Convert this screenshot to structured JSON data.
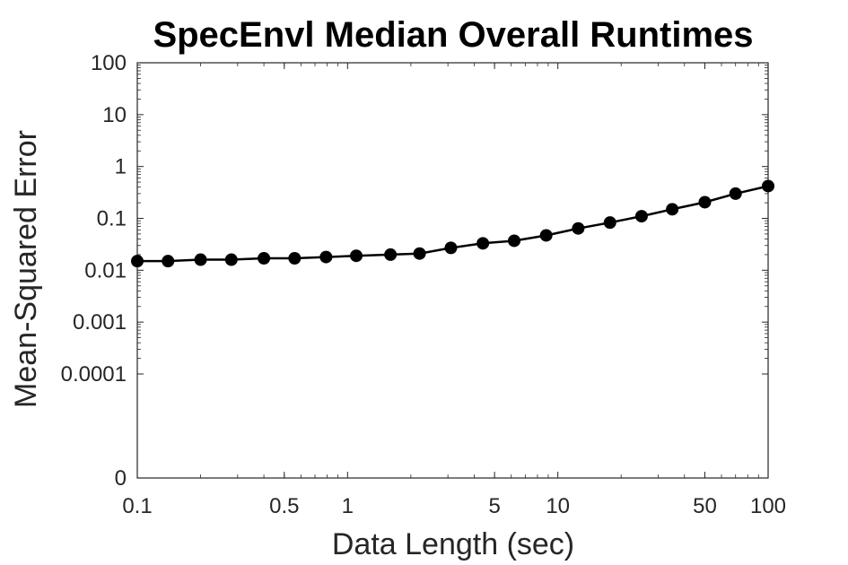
{
  "chart_data": {
    "type": "line",
    "title": "SpecEnvl Median Overall Runtimes",
    "xlabel": "Data Length (sec)",
    "ylabel": "Mean-Squared Error",
    "xscale": "log",
    "yscale": "log",
    "xlim": [
      0.1,
      100
    ],
    "ylim": [
      0,
      100
    ],
    "grid": false,
    "x_ticks": [
      {
        "value": 0.1,
        "label": "0.1"
      },
      {
        "value": 0.5,
        "label": "0.5"
      },
      {
        "value": 1,
        "label": "1"
      },
      {
        "value": 5,
        "label": "5"
      },
      {
        "value": 10,
        "label": "10"
      },
      {
        "value": 50,
        "label": "50"
      },
      {
        "value": 100,
        "label": "100"
      }
    ],
    "y_ticks": [
      {
        "value": 0,
        "label": "0"
      },
      {
        "value": 0.0001,
        "label": "0.0001"
      },
      {
        "value": 0.001,
        "label": "0.001"
      },
      {
        "value": 0.01,
        "label": "0.01"
      },
      {
        "value": 0.1,
        "label": "0.1"
      },
      {
        "value": 1,
        "label": "1"
      },
      {
        "value": 10,
        "label": "10"
      },
      {
        "value": 100,
        "label": "100"
      }
    ],
    "series": [
      {
        "color": "#000000",
        "marker": "filled-circle",
        "x": [
          0.1,
          0.14,
          0.2,
          0.28,
          0.4,
          0.56,
          0.79,
          1.1,
          1.6,
          2.2,
          3.1,
          4.4,
          6.2,
          8.8,
          12.5,
          17.7,
          25,
          35,
          50,
          70,
          100
        ],
        "y": [
          0.015,
          0.015,
          0.016,
          0.016,
          0.017,
          0.017,
          0.018,
          0.019,
          0.02,
          0.021,
          0.027,
          0.033,
          0.037,
          0.047,
          0.064,
          0.083,
          0.11,
          0.15,
          0.205,
          0.3,
          0.42
        ]
      }
    ]
  }
}
